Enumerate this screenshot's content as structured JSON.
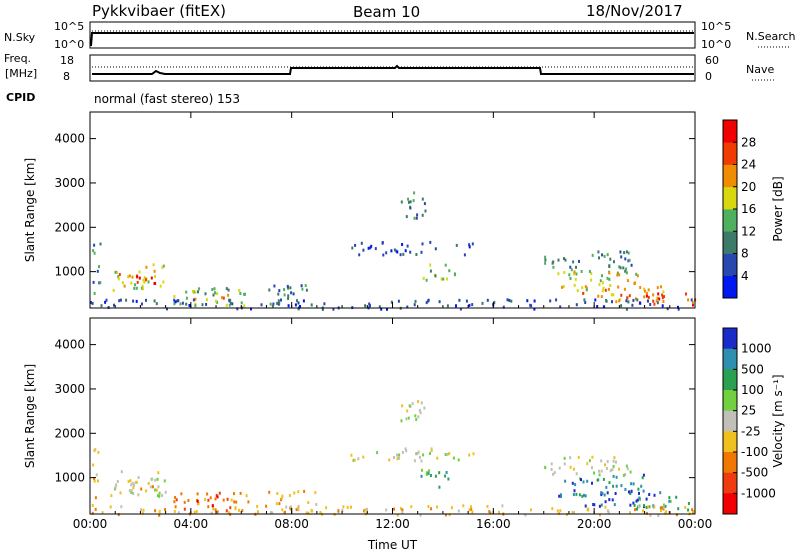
{
  "header": {
    "title": "Pykkvibaer (fitEX)",
    "beam": "Beam 10",
    "date": "18/Nov/2017"
  },
  "strip_labels": {
    "nsky": "N.Sky",
    "freq_line1": "Freq.",
    "freq_line2": "[MHz]",
    "cpid": "CPID",
    "nsearch": "N.Search",
    "nave": "Nave"
  },
  "strip_ticks": {
    "nsky_top": "10^5",
    "nsky_bottom": "10^0",
    "nsearch_top": "10^5",
    "nsearch_bottom": "10^0",
    "freq_top": "18",
    "freq_bottom": "8",
    "nave_top": "60",
    "nave_bottom": "0"
  },
  "cpid_text": "normal (fast stereo) 153",
  "chart_data": [
    {
      "type": "heatmap",
      "name": "power",
      "ylabel": "Slant Range [km]",
      "xlabel": "",
      "x_ticks": [
        "00:00",
        "04:00",
        "08:00",
        "12:00",
        "16:00",
        "20:00",
        "00:00"
      ],
      "x_range_hours": [
        0,
        24
      ],
      "y_ticks": [
        1000,
        2000,
        3000,
        4000
      ],
      "ylim": [
        180,
        4600
      ],
      "colorbar": {
        "label": "Power [dB]",
        "ticks": [
          "4",
          "8",
          "12",
          "16",
          "20",
          "24",
          "28"
        ],
        "colors": [
          "#0018f0",
          "#2848b0",
          "#3e7a6a",
          "#4fb060",
          "#d8d810",
          "#f08c00",
          "#f03c00",
          "#f00000"
        ]
      },
      "regions": [
        {
          "t0": 0.05,
          "t1": 0.4,
          "r0": 300,
          "r1": 1750,
          "level": 2
        },
        {
          "t0": 0.8,
          "t1": 3.0,
          "r0": 600,
          "r1": 1200,
          "level": 4
        },
        {
          "t0": 1.1,
          "t1": 2.7,
          "r0": 700,
          "r1": 1000,
          "level": 6
        },
        {
          "t0": 3.3,
          "t1": 6.3,
          "r0": 250,
          "r1": 700,
          "level": 3
        },
        {
          "t0": 4.0,
          "t1": 5.5,
          "r0": 350,
          "r1": 600,
          "level": 5
        },
        {
          "t0": 7.0,
          "t1": 9.0,
          "r0": 280,
          "r1": 750,
          "level": 2
        },
        {
          "t0": 12.2,
          "t1": 13.3,
          "r0": 2200,
          "r1": 2850,
          "level": 2
        },
        {
          "t0": 10.3,
          "t1": 15.2,
          "r0": 1400,
          "r1": 1700,
          "level": 1
        },
        {
          "t0": 13.0,
          "t1": 14.5,
          "r0": 800,
          "r1": 1200,
          "level": 3
        },
        {
          "t0": 18.0,
          "t1": 21.5,
          "r0": 1000,
          "r1": 1500,
          "level": 2
        },
        {
          "t0": 18.5,
          "t1": 22.0,
          "r0": 600,
          "r1": 1100,
          "level": 4
        },
        {
          "t0": 19.5,
          "t1": 22.8,
          "r0": 350,
          "r1": 750,
          "level": 5
        },
        {
          "t0": 21.5,
          "t1": 24.0,
          "r0": 280,
          "r1": 600,
          "level": 6
        },
        {
          "t0": 0.0,
          "t1": 24.0,
          "r0": 180,
          "r1": 400,
          "level": 1
        }
      ]
    },
    {
      "type": "heatmap",
      "name": "velocity",
      "ylabel": "Slant Range [km]",
      "xlabel": "Time UT",
      "x_ticks": [
        "00:00",
        "04:00",
        "08:00",
        "12:00",
        "16:00",
        "20:00",
        "00:00"
      ],
      "x_range_hours": [
        0,
        24
      ],
      "y_ticks": [
        1000,
        2000,
        3000,
        4000
      ],
      "ylim": [
        180,
        4600
      ],
      "colorbar": {
        "label": "Velocity [m s⁻¹]",
        "ticks": [
          "1000",
          "500",
          "100",
          "25",
          "-25",
          "-100",
          "-500",
          "-1000"
        ],
        "colors": [
          "#1a2cc8",
          "#2f8fb0",
          "#2aa050",
          "#70d040",
          "#c0c0b8",
          "#f0c020",
          "#f07800",
          "#f03a10",
          "#f00000"
        ]
      },
      "regions": [
        {
          "t0": 0.05,
          "t1": 0.4,
          "r0": 300,
          "r1": 1750,
          "level": 5
        },
        {
          "t0": 0.8,
          "t1": 3.0,
          "r0": 600,
          "r1": 1200,
          "level": 4
        },
        {
          "t0": 1.1,
          "t1": 2.7,
          "r0": 700,
          "r1": 1000,
          "level": 5
        },
        {
          "t0": 3.3,
          "t1": 6.3,
          "r0": 250,
          "r1": 700,
          "level": 6
        },
        {
          "t0": 4.0,
          "t1": 5.5,
          "r0": 350,
          "r1": 600,
          "level": 7
        },
        {
          "t0": 7.0,
          "t1": 9.0,
          "r0": 280,
          "r1": 750,
          "level": 5
        },
        {
          "t0": 12.2,
          "t1": 13.3,
          "r0": 2200,
          "r1": 2850,
          "level": 4
        },
        {
          "t0": 10.3,
          "t1": 15.2,
          "r0": 1400,
          "r1": 1700,
          "level": 4
        },
        {
          "t0": 13.0,
          "t1": 14.5,
          "r0": 800,
          "r1": 1200,
          "level": 2
        },
        {
          "t0": 18.0,
          "t1": 21.5,
          "r0": 1000,
          "r1": 1500,
          "level": 4
        },
        {
          "t0": 18.5,
          "t1": 22.0,
          "r0": 600,
          "r1": 1100,
          "level": 1
        },
        {
          "t0": 19.5,
          "t1": 22.8,
          "r0": 350,
          "r1": 750,
          "level": 0
        },
        {
          "t0": 21.5,
          "t1": 24.0,
          "r0": 280,
          "r1": 600,
          "level": 2
        },
        {
          "t0": 0.0,
          "t1": 24.0,
          "r0": 180,
          "r1": 400,
          "level": 5
        }
      ]
    }
  ]
}
